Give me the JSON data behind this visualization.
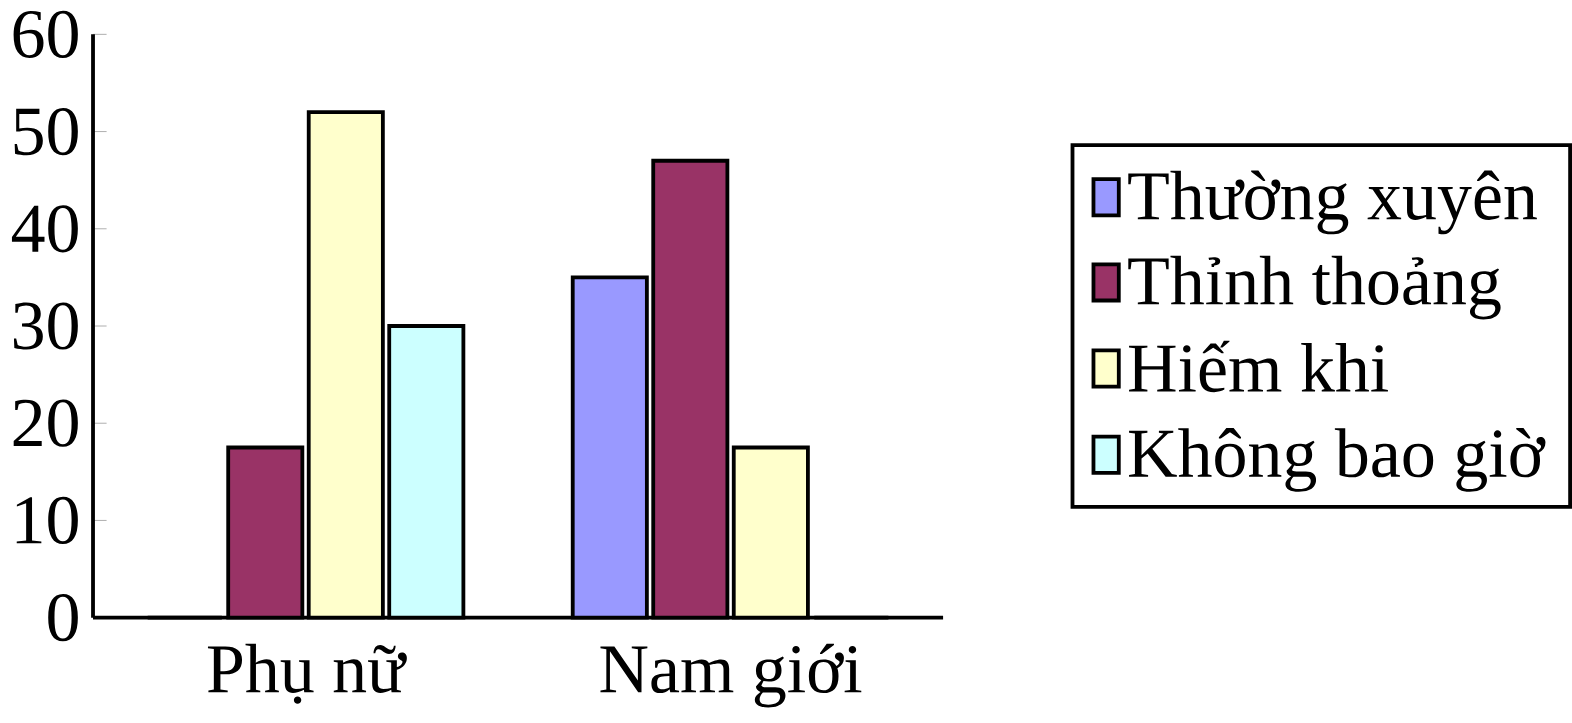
{
  "chart_data": {
    "type": "bar",
    "categories": [
      "Phụ nữ",
      "Nam giới"
    ],
    "series": [
      {
        "name": "Thường xuyên",
        "color": "#9999ff",
        "values": [
          0,
          35
        ]
      },
      {
        "name": "Thỉnh thoảng",
        "color": "#993366",
        "values": [
          17.5,
          47
        ]
      },
      {
        "name": "Hiếm khi",
        "color": "#ffffcc",
        "values": [
          52,
          17.5
        ]
      },
      {
        "name": "Không bao giờ",
        "color": "#ccffff",
        "values": [
          30,
          0
        ]
      }
    ],
    "ylim": [
      0,
      60
    ],
    "yticks": [
      0,
      10,
      20,
      30,
      40,
      50,
      60
    ],
    "grid": false,
    "legend": "right"
  }
}
